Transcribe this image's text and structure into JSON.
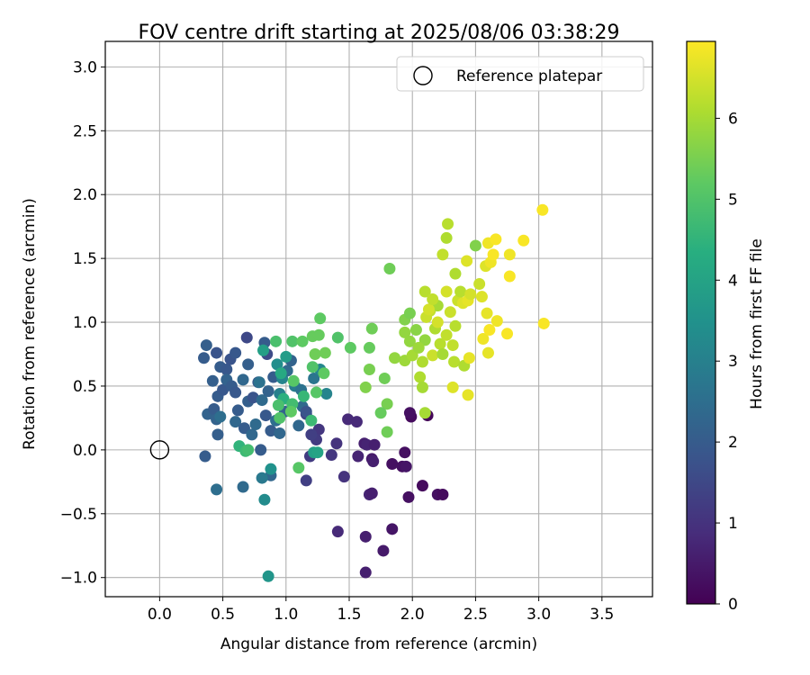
{
  "chart_data": {
    "type": "scatter",
    "title": "FOV centre drift starting at 2025/08/06 03:38:29",
    "xlabel": "Angular distance from reference (arcmin)",
    "ylabel": "Rotation from reference (arcmin)",
    "xlim": [
      -0.43,
      3.9
    ],
    "ylim": [
      -1.15,
      3.2
    ],
    "x_ticks": [
      "0.0",
      "0.5",
      "1.0",
      "1.5",
      "2.0",
      "2.5",
      "3.0",
      "3.5"
    ],
    "y_ticks": [
      "3.0",
      "2.5",
      "2.0",
      "1.5",
      "1.0",
      "0.5",
      "0.0",
      "−0.5",
      "−1.0"
    ],
    "grid": true,
    "legend": {
      "placement": "top-right",
      "label": "Reference platepar"
    },
    "reference_point": {
      "x": 0.0,
      "y": 0.0
    },
    "colorbar": {
      "label": "Hours from first FF file",
      "min": 0,
      "max": 6.95,
      "ticks": [
        "0",
        "1",
        "2",
        "3",
        "4",
        "5",
        "6"
      ],
      "colormap": "viridis"
    },
    "points": [
      {
        "x": 1.63,
        "y": -0.96,
        "h": 0.6
      },
      {
        "x": 1.77,
        "y": -0.79,
        "h": 0.5
      },
      {
        "x": 1.84,
        "y": -0.62,
        "h": 0.4
      },
      {
        "x": 1.41,
        "y": -0.64,
        "h": 0.8
      },
      {
        "x": 1.63,
        "y": -0.68,
        "h": 0.6
      },
      {
        "x": 1.66,
        "y": -0.35,
        "h": 0.7
      },
      {
        "x": 1.68,
        "y": -0.34,
        "h": 0.6
      },
      {
        "x": 1.97,
        "y": -0.37,
        "h": 0.3
      },
      {
        "x": 2.08,
        "y": -0.28,
        "h": 0.2
      },
      {
        "x": 2.2,
        "y": -0.35,
        "h": 0.3
      },
      {
        "x": 2.24,
        "y": -0.35,
        "h": 0.2
      },
      {
        "x": 1.92,
        "y": -0.13,
        "h": 0.3
      },
      {
        "x": 1.84,
        "y": -0.11,
        "h": 0.3
      },
      {
        "x": 1.95,
        "y": -0.13,
        "h": 0.4
      },
      {
        "x": 1.94,
        "y": -0.02,
        "h": 0.3
      },
      {
        "x": 1.62,
        "y": 0.05,
        "h": 0.6
      },
      {
        "x": 1.57,
        "y": -0.05,
        "h": 0.7
      },
      {
        "x": 1.64,
        "y": 0.04,
        "h": 0.7
      },
      {
        "x": 1.7,
        "y": 0.04,
        "h": 0.6
      },
      {
        "x": 1.68,
        "y": -0.07,
        "h": 0.5
      },
      {
        "x": 1.69,
        "y": -0.09,
        "h": 0.6
      },
      {
        "x": 1.99,
        "y": 0.26,
        "h": 0.2
      },
      {
        "x": 1.98,
        "y": 0.29,
        "h": 0.3
      },
      {
        "x": 2.12,
        "y": 0.27,
        "h": 0.1
      },
      {
        "x": 1.49,
        "y": 0.24,
        "h": 0.8
      },
      {
        "x": 1.56,
        "y": 0.22,
        "h": 0.8
      },
      {
        "x": 1.46,
        "y": -0.21,
        "h": 1.0
      },
      {
        "x": 1.4,
        "y": 0.05,
        "h": 1.0
      },
      {
        "x": 1.36,
        "y": -0.04,
        "h": 1.1
      },
      {
        "x": 1.26,
        "y": 0.16,
        "h": 1.1
      },
      {
        "x": 1.16,
        "y": -0.24,
        "h": 1.3
      },
      {
        "x": 1.19,
        "y": -0.05,
        "h": 1.2
      },
      {
        "x": 1.24,
        "y": 0.08,
        "h": 1.2
      },
      {
        "x": 1.2,
        "y": 0.12,
        "h": 1.3
      },
      {
        "x": 1.16,
        "y": 0.28,
        "h": 1.4
      },
      {
        "x": 0.36,
        "y": -0.05,
        "h": 2.0
      },
      {
        "x": 0.45,
        "y": -0.31,
        "h": 2.5
      },
      {
        "x": 0.66,
        "y": -0.29,
        "h": 2.4
      },
      {
        "x": 0.88,
        "y": -0.2,
        "h": 2.3
      },
      {
        "x": 0.83,
        "y": -0.39,
        "h": 3.3
      },
      {
        "x": 0.86,
        "y": -0.99,
        "h": 3.6
      },
      {
        "x": 0.81,
        "y": -0.22,
        "h": 2.8
      },
      {
        "x": 0.88,
        "y": -0.15,
        "h": 3.5
      },
      {
        "x": 0.63,
        "y": 0.03,
        "h": 4.5
      },
      {
        "x": 0.68,
        "y": -0.01,
        "h": 4.7
      },
      {
        "x": 1.22,
        "y": -0.02,
        "h": 3.9
      },
      {
        "x": 1.25,
        "y": -0.02,
        "h": 4.0
      },
      {
        "x": 1.1,
        "y": -0.14,
        "h": 5.1
      },
      {
        "x": 0.8,
        "y": 0.0,
        "h": 2.0
      },
      {
        "x": 0.7,
        "y": 0.0,
        "h": 4.8
      },
      {
        "x": 0.35,
        "y": 0.72,
        "h": 2.0
      },
      {
        "x": 0.37,
        "y": 0.82,
        "h": 2.1
      },
      {
        "x": 0.45,
        "y": 0.76,
        "h": 1.8
      },
      {
        "x": 0.48,
        "y": 0.65,
        "h": 2.0
      },
      {
        "x": 0.53,
        "y": 0.63,
        "h": 1.9
      },
      {
        "x": 0.56,
        "y": 0.71,
        "h": 1.8
      },
      {
        "x": 0.6,
        "y": 0.76,
        "h": 1.9
      },
      {
        "x": 0.69,
        "y": 0.88,
        "h": 1.5
      },
      {
        "x": 0.7,
        "y": 0.67,
        "h": 2.1
      },
      {
        "x": 0.78,
        "y": 0.53,
        "h": 2.0
      },
      {
        "x": 0.83,
        "y": 0.84,
        "h": 2.0
      },
      {
        "x": 0.85,
        "y": 0.75,
        "h": 1.6
      },
      {
        "x": 0.42,
        "y": 0.54,
        "h": 2.1
      },
      {
        "x": 0.46,
        "y": 0.42,
        "h": 2.0
      },
      {
        "x": 0.5,
        "y": 0.47,
        "h": 1.9
      },
      {
        "x": 0.53,
        "y": 0.55,
        "h": 2.2
      },
      {
        "x": 0.57,
        "y": 0.5,
        "h": 2.0
      },
      {
        "x": 0.6,
        "y": 0.45,
        "h": 1.9
      },
      {
        "x": 0.66,
        "y": 0.55,
        "h": 2.3
      },
      {
        "x": 0.7,
        "y": 0.38,
        "h": 2.1
      },
      {
        "x": 0.74,
        "y": 0.41,
        "h": 1.8
      },
      {
        "x": 0.79,
        "y": 0.53,
        "h": 2.6
      },
      {
        "x": 0.81,
        "y": 0.39,
        "h": 2.4
      },
      {
        "x": 0.86,
        "y": 0.46,
        "h": 2.2
      },
      {
        "x": 0.9,
        "y": 0.57,
        "h": 2.0
      },
      {
        "x": 0.38,
        "y": 0.28,
        "h": 2.2
      },
      {
        "x": 0.43,
        "y": 0.32,
        "h": 2.0
      },
      {
        "x": 0.45,
        "y": 0.24,
        "h": 2.2
      },
      {
        "x": 0.48,
        "y": 0.26,
        "h": 2.5
      },
      {
        "x": 0.46,
        "y": 0.12,
        "h": 2.1
      },
      {
        "x": 0.6,
        "y": 0.22,
        "h": 2.3
      },
      {
        "x": 0.62,
        "y": 0.31,
        "h": 2.0
      },
      {
        "x": 0.67,
        "y": 0.17,
        "h": 2.0
      },
      {
        "x": 0.73,
        "y": 0.12,
        "h": 2.3
      },
      {
        "x": 0.76,
        "y": 0.2,
        "h": 2.4
      },
      {
        "x": 0.84,
        "y": 0.27,
        "h": 1.9
      },
      {
        "x": 0.88,
        "y": 0.15,
        "h": 2.0
      },
      {
        "x": 0.92,
        "y": 0.23,
        "h": 2.5
      },
      {
        "x": 0.95,
        "y": 0.13,
        "h": 2.3
      },
      {
        "x": 0.99,
        "y": 0.3,
        "h": 2.2
      },
      {
        "x": 0.95,
        "y": 0.44,
        "h": 3.0
      },
      {
        "x": 0.97,
        "y": 0.56,
        "h": 3.1
      },
      {
        "x": 1.01,
        "y": 0.62,
        "h": 2.4
      },
      {
        "x": 1.04,
        "y": 0.7,
        "h": 2.2
      },
      {
        "x": 1.07,
        "y": 0.5,
        "h": 2.9
      },
      {
        "x": 1.12,
        "y": 0.47,
        "h": 2.6
      },
      {
        "x": 1.13,
        "y": 0.34,
        "h": 2.4
      },
      {
        "x": 1.16,
        "y": 0.3,
        "h": 1.8
      },
      {
        "x": 1.1,
        "y": 0.19,
        "h": 2.3
      },
      {
        "x": 1.22,
        "y": 0.56,
        "h": 2.7
      },
      {
        "x": 1.27,
        "y": 0.63,
        "h": 3.2
      },
      {
        "x": 1.32,
        "y": 0.44,
        "h": 3.1
      },
      {
        "x": 1.0,
        "y": 0.73,
        "h": 3.8
      },
      {
        "x": 0.93,
        "y": 0.67,
        "h": 3.4
      },
      {
        "x": 0.82,
        "y": 0.78,
        "h": 3.9
      },
      {
        "x": 0.96,
        "y": 0.6,
        "h": 4.2
      },
      {
        "x": 0.98,
        "y": 0.4,
        "h": 4.4
      },
      {
        "x": 1.05,
        "y": 0.36,
        "h": 4.8
      },
      {
        "x": 1.14,
        "y": 0.42,
        "h": 4.6
      },
      {
        "x": 1.2,
        "y": 0.23,
        "h": 4.7
      },
      {
        "x": 0.92,
        "y": 0.85,
        "h": 4.9
      },
      {
        "x": 1.05,
        "y": 0.85,
        "h": 5.0
      },
      {
        "x": 1.13,
        "y": 0.85,
        "h": 5.2
      },
      {
        "x": 1.21,
        "y": 0.89,
        "h": 5.3
      },
      {
        "x": 1.27,
        "y": 1.03,
        "h": 5.2
      },
      {
        "x": 1.26,
        "y": 0.9,
        "h": 5.3
      },
      {
        "x": 1.31,
        "y": 0.76,
        "h": 5.4
      },
      {
        "x": 1.23,
        "y": 0.75,
        "h": 5.4
      },
      {
        "x": 1.3,
        "y": 0.6,
        "h": 5.2
      },
      {
        "x": 1.21,
        "y": 0.65,
        "h": 5.0
      },
      {
        "x": 1.24,
        "y": 0.45,
        "h": 5.1
      },
      {
        "x": 1.06,
        "y": 0.54,
        "h": 5.1
      },
      {
        "x": 1.04,
        "y": 0.3,
        "h": 5.2
      },
      {
        "x": 0.94,
        "y": 0.35,
        "h": 4.9
      },
      {
        "x": 0.95,
        "y": 0.25,
        "h": 5.0
      },
      {
        "x": 1.41,
        "y": 0.88,
        "h": 5.0
      },
      {
        "x": 1.51,
        "y": 0.8,
        "h": 5.2
      },
      {
        "x": 1.66,
        "y": 0.8,
        "h": 5.3
      },
      {
        "x": 1.68,
        "y": 0.95,
        "h": 5.4
      },
      {
        "x": 1.66,
        "y": 0.63,
        "h": 5.5
      },
      {
        "x": 1.63,
        "y": 0.49,
        "h": 5.6
      },
      {
        "x": 1.78,
        "y": 0.56,
        "h": 5.4
      },
      {
        "x": 1.8,
        "y": 0.36,
        "h": 5.5
      },
      {
        "x": 1.75,
        "y": 0.29,
        "h": 5.3
      },
      {
        "x": 1.8,
        "y": 0.14,
        "h": 5.4
      },
      {
        "x": 1.82,
        "y": 1.42,
        "h": 5.4
      },
      {
        "x": 1.94,
        "y": 0.7,
        "h": 5.9
      },
      {
        "x": 1.94,
        "y": 0.92,
        "h": 5.8
      },
      {
        "x": 1.94,
        "y": 1.02,
        "h": 5.6
      },
      {
        "x": 1.98,
        "y": 1.07,
        "h": 5.5
      },
      {
        "x": 1.98,
        "y": 0.85,
        "h": 5.8
      },
      {
        "x": 2.0,
        "y": 0.74,
        "h": 6.0
      },
      {
        "x": 2.03,
        "y": 0.94,
        "h": 5.7
      },
      {
        "x": 2.06,
        "y": 0.57,
        "h": 6.1
      },
      {
        "x": 2.08,
        "y": 0.49,
        "h": 6.0
      },
      {
        "x": 2.08,
        "y": 0.69,
        "h": 6.1
      },
      {
        "x": 2.1,
        "y": 0.86,
        "h": 5.8
      },
      {
        "x": 2.1,
        "y": 1.24,
        "h": 6.2
      },
      {
        "x": 2.14,
        "y": 1.09,
        "h": 6.3
      },
      {
        "x": 2.16,
        "y": 0.74,
        "h": 6.4
      },
      {
        "x": 2.18,
        "y": 0.95,
        "h": 6.1
      },
      {
        "x": 2.2,
        "y": 1.13,
        "h": 6.0
      },
      {
        "x": 2.22,
        "y": 0.83,
        "h": 6.2
      },
      {
        "x": 2.24,
        "y": 1.53,
        "h": 6.3
      },
      {
        "x": 2.27,
        "y": 1.66,
        "h": 6.1
      },
      {
        "x": 2.28,
        "y": 1.77,
        "h": 6.2
      },
      {
        "x": 2.27,
        "y": 1.24,
        "h": 6.5
      },
      {
        "x": 2.3,
        "y": 1.08,
        "h": 6.4
      },
      {
        "x": 2.32,
        "y": 0.82,
        "h": 6.3
      },
      {
        "x": 2.33,
        "y": 0.69,
        "h": 6.2
      },
      {
        "x": 2.34,
        "y": 0.97,
        "h": 6.2
      },
      {
        "x": 2.36,
        "y": 1.17,
        "h": 6.4
      },
      {
        "x": 2.38,
        "y": 1.24,
        "h": 6.2
      },
      {
        "x": 2.4,
        "y": 1.15,
        "h": 6.6
      },
      {
        "x": 2.41,
        "y": 0.66,
        "h": 6.1
      },
      {
        "x": 2.43,
        "y": 1.48,
        "h": 6.6
      },
      {
        "x": 2.44,
        "y": 1.17,
        "h": 6.7
      },
      {
        "x": 2.46,
        "y": 1.22,
        "h": 6.5
      },
      {
        "x": 2.45,
        "y": 0.72,
        "h": 6.7
      },
      {
        "x": 2.44,
        "y": 0.43,
        "h": 6.7
      },
      {
        "x": 2.32,
        "y": 0.49,
        "h": 6.6
      },
      {
        "x": 2.55,
        "y": 1.2,
        "h": 6.6
      },
      {
        "x": 2.56,
        "y": 0.87,
        "h": 6.8
      },
      {
        "x": 2.58,
        "y": 1.44,
        "h": 6.6
      },
      {
        "x": 2.59,
        "y": 1.07,
        "h": 6.7
      },
      {
        "x": 2.6,
        "y": 1.62,
        "h": 6.8
      },
      {
        "x": 2.6,
        "y": 0.76,
        "h": 6.7
      },
      {
        "x": 2.61,
        "y": 0.94,
        "h": 6.9
      },
      {
        "x": 2.62,
        "y": 1.47,
        "h": 6.8
      },
      {
        "x": 2.64,
        "y": 1.53,
        "h": 6.9
      },
      {
        "x": 2.66,
        "y": 1.65,
        "h": 6.9
      },
      {
        "x": 2.67,
        "y": 1.01,
        "h": 6.8
      },
      {
        "x": 2.75,
        "y": 0.91,
        "h": 6.9
      },
      {
        "x": 2.77,
        "y": 1.53,
        "h": 6.8
      },
      {
        "x": 2.77,
        "y": 1.36,
        "h": 6.9
      },
      {
        "x": 2.88,
        "y": 1.64,
        "h": 6.9
      },
      {
        "x": 3.03,
        "y": 1.88,
        "h": 6.9
      },
      {
        "x": 3.04,
        "y": 0.99,
        "h": 6.9
      },
      {
        "x": 2.11,
        "y": 1.04,
        "h": 6.4
      },
      {
        "x": 2.13,
        "y": 1.1,
        "h": 6.5
      },
      {
        "x": 2.16,
        "y": 1.18,
        "h": 6.3
      },
      {
        "x": 2.2,
        "y": 1.0,
        "h": 6.5
      },
      {
        "x": 2.24,
        "y": 0.75,
        "h": 6.0
      },
      {
        "x": 2.27,
        "y": 0.9,
        "h": 6.3
      },
      {
        "x": 2.05,
        "y": 0.8,
        "h": 5.9
      },
      {
        "x": 2.34,
        "y": 1.38,
        "h": 6.1
      },
      {
        "x": 2.5,
        "y": 1.6,
        "h": 5.6
      },
      {
        "x": 2.53,
        "y": 1.3,
        "h": 6.4
      },
      {
        "x": 1.86,
        "y": 0.72,
        "h": 5.8
      },
      {
        "x": 2.1,
        "y": 0.29,
        "h": 6.0
      }
    ]
  }
}
